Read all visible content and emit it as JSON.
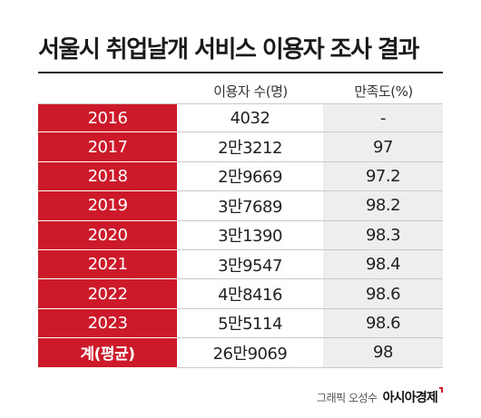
{
  "chart_data": {
    "type": "table",
    "title": "서울시 취업날개 서비스 이용자 조사 결과",
    "columns": [
      "",
      "이용자 수(명)",
      "만족도(%)"
    ],
    "rows": [
      {
        "year": "2016",
        "users": "4032",
        "satisfaction": "-"
      },
      {
        "year": "2017",
        "users": "2만3212",
        "satisfaction": "97"
      },
      {
        "year": "2018",
        "users": "2만9669",
        "satisfaction": "97.2"
      },
      {
        "year": "2019",
        "users": "3만7689",
        "satisfaction": "98.2"
      },
      {
        "year": "2020",
        "users": "3만1390",
        "satisfaction": "98.3"
      },
      {
        "year": "2021",
        "users": "3만9547",
        "satisfaction": "98.4"
      },
      {
        "year": "2022",
        "users": "4만8416",
        "satisfaction": "98.6"
      },
      {
        "year": "2023",
        "users": "5만5114",
        "satisfaction": "98.6"
      },
      {
        "year": "계(평균)",
        "users": "26만9069",
        "satisfaction": "98"
      }
    ]
  },
  "credit": {
    "label": "그래픽 오성수",
    "brand": "아시아경제"
  },
  "colors": {
    "accent": "#cc1a2a",
    "shade": "#eeeeee"
  }
}
